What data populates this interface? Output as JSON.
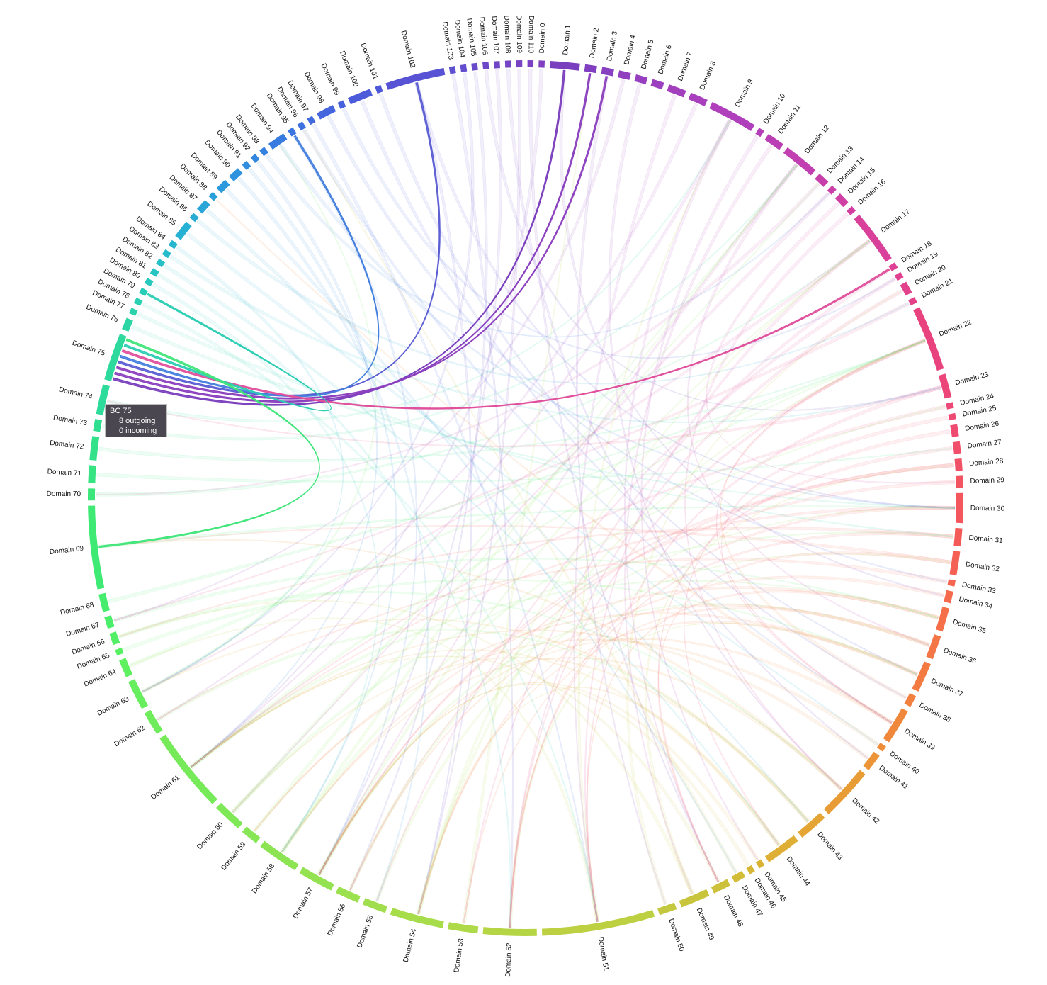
{
  "diagram": {
    "type": "chord",
    "domain_label_prefix": "Domain",
    "domains": [
      {
        "id": 0,
        "label": "Domain 0",
        "color": "#7f3fbf",
        "size": 1
      },
      {
        "id": 1,
        "label": "Domain 1",
        "color": "#7a3fbe",
        "size": 5
      },
      {
        "id": 2,
        "label": "Domain 2",
        "color": "#7f3fc0",
        "size": 2
      },
      {
        "id": 3,
        "label": "Domain 3",
        "color": "#883fc0",
        "size": 2
      },
      {
        "id": 4,
        "label": "Domain 4",
        "color": "#903fbf",
        "size": 2
      },
      {
        "id": 5,
        "label": "Domain 5",
        "color": "#963fbf",
        "size": 2
      },
      {
        "id": 6,
        "label": "Domain 6",
        "color": "#9b3fbe",
        "size": 2
      },
      {
        "id": 7,
        "label": "Domain 7",
        "color": "#a23fbd",
        "size": 3
      },
      {
        "id": 8,
        "label": "Domain 8",
        "color": "#a83fbc",
        "size": 3
      },
      {
        "id": 9,
        "label": "Domain 9",
        "color": "#b03fbb",
        "size": 8
      },
      {
        "id": 10,
        "label": "Domain 10",
        "color": "#b53fb8",
        "size": 1
      },
      {
        "id": 11,
        "label": "Domain 11",
        "color": "#ba3fb5",
        "size": 3
      },
      {
        "id": 12,
        "label": "Domain 12",
        "color": "#c13fb0",
        "size": 6
      },
      {
        "id": 13,
        "label": "Domain 13",
        "color": "#c73fab",
        "size": 2
      },
      {
        "id": 14,
        "label": "Domain 14",
        "color": "#cb3fa8",
        "size": 1
      },
      {
        "id": 15,
        "label": "Domain 15",
        "color": "#cf3fa4",
        "size": 2
      },
      {
        "id": 16,
        "label": "Domain 16",
        "color": "#d33fa0",
        "size": 1
      },
      {
        "id": 17,
        "label": "Domain 17",
        "color": "#d9409a",
        "size": 9
      },
      {
        "id": 18,
        "label": "Domain 18",
        "color": "#dd4094",
        "size": 1
      },
      {
        "id": 19,
        "label": "Domain 19",
        "color": "#e04090",
        "size": 1
      },
      {
        "id": 20,
        "label": "Domain 20",
        "color": "#e2418c",
        "size": 2
      },
      {
        "id": 21,
        "label": "Domain 21",
        "color": "#e44288",
        "size": 1
      },
      {
        "id": 22,
        "label": "Domain 22",
        "color": "#e8437e",
        "size": 11
      },
      {
        "id": 23,
        "label": "Domain 23",
        "color": "#eb457a",
        "size": 4
      },
      {
        "id": 24,
        "label": "Domain 24",
        "color": "#ed4776",
        "size": 1
      },
      {
        "id": 25,
        "label": "Domain 25",
        "color": "#ee4972",
        "size": 1
      },
      {
        "id": 26,
        "label": "Domain 26",
        "color": "#ef4b6e",
        "size": 2
      },
      {
        "id": 27,
        "label": "Domain 27",
        "color": "#f04e6a",
        "size": 2
      },
      {
        "id": 28,
        "label": "Domain 28",
        "color": "#f15166",
        "size": 2
      },
      {
        "id": 29,
        "label": "Domain 29",
        "color": "#f25462",
        "size": 2
      },
      {
        "id": 30,
        "label": "Domain 30",
        "color": "#f3575d",
        "size": 5
      },
      {
        "id": 31,
        "label": "Domain 31",
        "color": "#f45b58",
        "size": 3
      },
      {
        "id": 32,
        "label": "Domain 32",
        "color": "#f56054",
        "size": 4
      },
      {
        "id": 33,
        "label": "Domain 33",
        "color": "#f56550",
        "size": 1
      },
      {
        "id": 34,
        "label": "Domain 34",
        "color": "#f56a4c",
        "size": 2
      },
      {
        "id": 35,
        "label": "Domain 35",
        "color": "#f56f48",
        "size": 4
      },
      {
        "id": 36,
        "label": "Domain 36",
        "color": "#f47545",
        "size": 4
      },
      {
        "id": 37,
        "label": "Domain 37",
        "color": "#f37b42",
        "size": 5
      },
      {
        "id": 38,
        "label": "Domain 38",
        "color": "#f2813f",
        "size": 2
      },
      {
        "id": 39,
        "label": "Domain 39",
        "color": "#f0883c",
        "size": 6
      },
      {
        "id": 40,
        "label": "Domain 40",
        "color": "#ee8e3a",
        "size": 1
      },
      {
        "id": 41,
        "label": "Domain 41",
        "color": "#ec9438",
        "size": 3
      },
      {
        "id": 42,
        "label": "Domain 42",
        "color": "#e89c36",
        "size": 9
      },
      {
        "id": 43,
        "label": "Domain 43",
        "color": "#e4a535",
        "size": 5
      },
      {
        "id": 44,
        "label": "Domain 44",
        "color": "#dfae35",
        "size": 6
      },
      {
        "id": 45,
        "label": "Domain 45",
        "color": "#dab335",
        "size": 1
      },
      {
        "id": 46,
        "label": "Domain 46",
        "color": "#d6b736",
        "size": 1
      },
      {
        "id": 47,
        "label": "Domain 47",
        "color": "#d2bc38",
        "size": 2
      },
      {
        "id": 48,
        "label": "Domain 48",
        "color": "#cdc03a",
        "size": 3
      },
      {
        "id": 49,
        "label": "Domain 49",
        "color": "#c8c43c",
        "size": 5
      },
      {
        "id": 50,
        "label": "Domain 50",
        "color": "#c3c83f",
        "size": 3
      },
      {
        "id": 51,
        "label": "Domain 51",
        "color": "#bcd042",
        "size": 19
      },
      {
        "id": 52,
        "label": "Domain 52",
        "color": "#b5d545",
        "size": 9
      },
      {
        "id": 53,
        "label": "Domain 53",
        "color": "#aed948",
        "size": 5
      },
      {
        "id": 54,
        "label": "Domain 54",
        "color": "#a7dc4b",
        "size": 9
      },
      {
        "id": 55,
        "label": "Domain 55",
        "color": "#a1de4d",
        "size": 4
      },
      {
        "id": 56,
        "label": "Domain 56",
        "color": "#9be04f",
        "size": 4
      },
      {
        "id": 57,
        "label": "Domain 57",
        "color": "#94e251",
        "size": 6
      },
      {
        "id": 58,
        "label": "Domain 58",
        "color": "#8de453",
        "size": 7
      },
      {
        "id": 59,
        "label": "Domain 59",
        "color": "#86e655",
        "size": 3
      },
      {
        "id": 60,
        "label": "Domain 60",
        "color": "#7fe857",
        "size": 5
      },
      {
        "id": 61,
        "label": "Domain 61",
        "color": "#77ea59",
        "size": 14
      },
      {
        "id": 62,
        "label": "Domain 62",
        "color": "#6fec5b",
        "size": 4
      },
      {
        "id": 63,
        "label": "Domain 63",
        "color": "#67ee5e",
        "size": 5
      },
      {
        "id": 64,
        "label": "Domain 64",
        "color": "#5ff060",
        "size": 3
      },
      {
        "id": 65,
        "label": "Domain 65",
        "color": "#58f063",
        "size": 1
      },
      {
        "id": 66,
        "label": "Domain 66",
        "color": "#52ef66",
        "size": 2
      },
      {
        "id": 67,
        "label": "Domain 67",
        "color": "#4bee6a",
        "size": 2
      },
      {
        "id": 68,
        "label": "Domain 68",
        "color": "#45ec6e",
        "size": 3
      },
      {
        "id": 69,
        "label": "Domain 69",
        "color": "#3fea74",
        "size": 14
      },
      {
        "id": 70,
        "label": "Domain 70",
        "color": "#3be77b",
        "size": 2
      },
      {
        "id": 71,
        "label": "Domain 71",
        "color": "#37e482",
        "size": 3
      },
      {
        "id": 72,
        "label": "Domain 72",
        "color": "#33e18a",
        "size": 4
      },
      {
        "id": 73,
        "label": "Domain 73",
        "color": "#30de92",
        "size": 2
      },
      {
        "id": 74,
        "label": "Domain 74",
        "color": "#2ddb9a",
        "size": 5
      },
      {
        "id": 75,
        "label": "Domain 75",
        "color": "#2dd99d",
        "size": 8
      },
      {
        "id": 76,
        "label": "Domain 76",
        "color": "#2bd6a4",
        "size": 2
      },
      {
        "id": 77,
        "label": "Domain 77",
        "color": "#2ad3ab",
        "size": 1
      },
      {
        "id": 78,
        "label": "Domain 78",
        "color": "#29d0b1",
        "size": 1
      },
      {
        "id": 79,
        "label": "Domain 79",
        "color": "#28cdb7",
        "size": 1
      },
      {
        "id": 80,
        "label": "Domain 80",
        "color": "#27c9bd",
        "size": 1
      },
      {
        "id": 81,
        "label": "Domain 81",
        "color": "#26c5c2",
        "size": 1
      },
      {
        "id": 82,
        "label": "Domain 82",
        "color": "#26c0c7",
        "size": 1
      },
      {
        "id": 83,
        "label": "Domain 83",
        "color": "#26bbcb",
        "size": 1
      },
      {
        "id": 84,
        "label": "Domain 84",
        "color": "#26b6ce",
        "size": 1
      },
      {
        "id": 85,
        "label": "Domain 85",
        "color": "#27b1d2",
        "size": 3
      },
      {
        "id": 86,
        "label": "Domain 86",
        "color": "#28abd5",
        "size": 1
      },
      {
        "id": 87,
        "label": "Domain 87",
        "color": "#29a5d8",
        "size": 2
      },
      {
        "id": 88,
        "label": "Domain 88",
        "color": "#2a9fda",
        "size": 1
      },
      {
        "id": 89,
        "label": "Domain 89",
        "color": "#2c99dc",
        "size": 2
      },
      {
        "id": 90,
        "label": "Domain 90",
        "color": "#2e93de",
        "size": 2
      },
      {
        "id": 91,
        "label": "Domain 91",
        "color": "#308ddf",
        "size": 1
      },
      {
        "id": 92,
        "label": "Domain 92",
        "color": "#3287e0",
        "size": 1
      },
      {
        "id": 93,
        "label": "Domain 93",
        "color": "#3581e0",
        "size": 1
      },
      {
        "id": 94,
        "label": "Domain 94",
        "color": "#387be0",
        "size": 3
      },
      {
        "id": 95,
        "label": "Domain 95",
        "color": "#3b75e0",
        "size": 1
      },
      {
        "id": 96,
        "label": "Domain 96",
        "color": "#3e70df",
        "size": 1
      },
      {
        "id": 97,
        "label": "Domain 97",
        "color": "#416adf",
        "size": 1
      },
      {
        "id": 98,
        "label": "Domain 98",
        "color": "#4465dd",
        "size": 3
      },
      {
        "id": 99,
        "label": "Domain 99",
        "color": "#4760dc",
        "size": 1
      },
      {
        "id": 100,
        "label": "Domain 100",
        "color": "#4b5bda",
        "size": 4
      },
      {
        "id": 101,
        "label": "Domain 101",
        "color": "#4e57d8",
        "size": 1
      },
      {
        "id": 102,
        "label": "Domain 102",
        "color": "#5753d4",
        "size": 10
      },
      {
        "id": 103,
        "label": "Domain 103",
        "color": "#5d50d1",
        "size": 1
      },
      {
        "id": 104,
        "label": "Domain 104",
        "color": "#624dce",
        "size": 1
      },
      {
        "id": 105,
        "label": "Domain 105",
        "color": "#674bcb",
        "size": 1
      },
      {
        "id": 106,
        "label": "Domain 106",
        "color": "#6c48c8",
        "size": 1
      },
      {
        "id": 107,
        "label": "Domain 107",
        "color": "#7046c6",
        "size": 1
      },
      {
        "id": 108,
        "label": "Domain 108",
        "color": "#7444c4",
        "size": 1
      },
      {
        "id": 109,
        "label": "Domain 109",
        "color": "#7842c2",
        "size": 1
      },
      {
        "id": 110,
        "label": "Domain 110",
        "color": "#7c41c0",
        "size": 1
      }
    ],
    "highlighted_domain": 75,
    "highlighted_links": [
      {
        "source": 75,
        "target": 1,
        "color": "#7b3fbd"
      },
      {
        "source": 75,
        "target": 2,
        "color": "#8a40be"
      },
      {
        "source": 75,
        "target": 3,
        "color": "#8d41bf"
      },
      {
        "source": 75,
        "target": 102,
        "color": "#5b5ed3"
      },
      {
        "source": 75,
        "target": 95,
        "color": "#4680de"
      },
      {
        "source": 75,
        "target": 18,
        "color": "#e0509c"
      },
      {
        "source": 75,
        "target": 79,
        "color": "#2ccdb3"
      },
      {
        "source": 75,
        "target": 69,
        "color": "#40e57a"
      }
    ],
    "background_link_pairs": [
      [
        17,
        63
      ],
      [
        22,
        52
      ],
      [
        12,
        57
      ],
      [
        9,
        48
      ],
      [
        30,
        61
      ],
      [
        42,
        58
      ],
      [
        51,
        9
      ],
      [
        61,
        22
      ],
      [
        69,
        30
      ],
      [
        102,
        54
      ],
      [
        35,
        58
      ],
      [
        43,
        60
      ],
      [
        44,
        54
      ],
      [
        37,
        59
      ],
      [
        49,
        28
      ],
      [
        54,
        17
      ],
      [
        60,
        12
      ],
      [
        72,
        22
      ],
      [
        85,
        40
      ],
      [
        98,
        33
      ],
      [
        7,
        51
      ],
      [
        4,
        67
      ],
      [
        11,
        49
      ],
      [
        19,
        55
      ],
      [
        23,
        74
      ],
      [
        31,
        66
      ],
      [
        39,
        88
      ],
      [
        47,
        96
      ],
      [
        53,
        2
      ],
      [
        57,
        36
      ],
      [
        63,
        94
      ],
      [
        66,
        42
      ],
      [
        71,
        27
      ],
      [
        74,
        9
      ],
      [
        77,
        31
      ],
      [
        83,
        23
      ],
      [
        89,
        47
      ],
      [
        93,
        14
      ],
      [
        100,
        38
      ],
      [
        105,
        56
      ],
      [
        1,
        34
      ],
      [
        3,
        50
      ],
      [
        5,
        42
      ],
      [
        8,
        62
      ],
      [
        13,
        70
      ],
      [
        15,
        29
      ],
      [
        20,
        52
      ],
      [
        24,
        61
      ],
      [
        26,
        44
      ],
      [
        28,
        56
      ],
      [
        32,
        69
      ],
      [
        36,
        53
      ],
      [
        41,
        61
      ],
      [
        46,
        57
      ],
      [
        50,
        20
      ],
      [
        52,
        37
      ],
      [
        55,
        32
      ],
      [
        58,
        24
      ],
      [
        59,
        13
      ],
      [
        62,
        43
      ],
      [
        64,
        22
      ],
      [
        67,
        35
      ],
      [
        70,
        17
      ],
      [
        73,
        12
      ],
      [
        76,
        30
      ],
      [
        78,
        51
      ],
      [
        80,
        58
      ],
      [
        82,
        44
      ],
      [
        86,
        21
      ],
      [
        90,
        55
      ],
      [
        92,
        61
      ],
      [
        94,
        30
      ],
      [
        97,
        51
      ],
      [
        99,
        19
      ],
      [
        101,
        37
      ],
      [
        103,
        52
      ],
      [
        104,
        63
      ],
      [
        106,
        23
      ],
      [
        107,
        57
      ],
      [
        108,
        41
      ],
      [
        109,
        54
      ],
      [
        110,
        48
      ],
      [
        0,
        61
      ],
      [
        10,
        45
      ],
      [
        14,
        60
      ],
      [
        16,
        42
      ],
      [
        18,
        53
      ],
      [
        21,
        67
      ],
      [
        25,
        39
      ],
      [
        27,
        48
      ],
      [
        29,
        57
      ],
      [
        33,
        62
      ],
      [
        34,
        54
      ],
      [
        38,
        22
      ],
      [
        40,
        59
      ],
      [
        45,
        57
      ],
      [
        48,
        61
      ],
      [
        56,
        30
      ],
      [
        65,
        37
      ],
      [
        68,
        22
      ],
      [
        81,
        52
      ],
      [
        84,
        63
      ],
      [
        87,
        43
      ],
      [
        91,
        58
      ],
      [
        95,
        57
      ],
      [
        96,
        39
      ],
      [
        12,
        36
      ],
      [
        17,
        51
      ],
      [
        22,
        39
      ],
      [
        9,
        61
      ],
      [
        42,
        69
      ],
      [
        30,
        52
      ],
      [
        51,
        64
      ],
      [
        61,
        35
      ],
      [
        102,
        30
      ],
      [
        57,
        17
      ],
      [
        54,
        22
      ],
      [
        58,
        12
      ],
      [
        43,
        63
      ],
      [
        44,
        61
      ],
      [
        37,
        54
      ],
      [
        49,
        66
      ],
      [
        60,
        31
      ],
      [
        39,
        57
      ],
      [
        36,
        56
      ],
      [
        35,
        51
      ],
      [
        32,
        48
      ],
      [
        31,
        52
      ],
      [
        28,
        57
      ],
      [
        23,
        51
      ]
    ]
  },
  "tooltip": {
    "title": "BC 75",
    "outgoing": "8 outgoing",
    "incoming": "0 incoming"
  }
}
